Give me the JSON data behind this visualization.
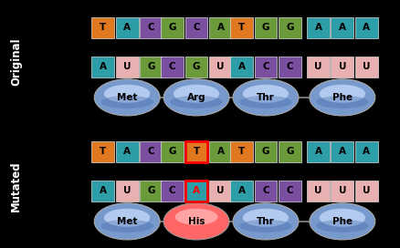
{
  "bg_outer": "#000000",
  "bg_inner": "#ffffff",
  "original": {
    "side_label": "Original",
    "dna_codons": [
      [
        {
          "letter": "T",
          "color": "#e07820"
        },
        {
          "letter": "A",
          "color": "#2d9da8"
        },
        {
          "letter": "C",
          "color": "#7b4fa0"
        }
      ],
      [
        {
          "letter": "G",
          "color": "#6a9a3a"
        },
        {
          "letter": "C",
          "color": "#7b4fa0"
        },
        {
          "letter": "A",
          "color": "#6a9a3a"
        }
      ],
      [
        {
          "letter": "T",
          "color": "#e07820"
        },
        {
          "letter": "G",
          "color": "#6a9a3a"
        },
        {
          "letter": "G",
          "color": "#6a9a3a"
        }
      ],
      [
        {
          "letter": "A",
          "color": "#2d9da8"
        },
        {
          "letter": "A",
          "color": "#2d9da8"
        },
        {
          "letter": "A",
          "color": "#2d9da8"
        }
      ]
    ],
    "mrna_codons": [
      [
        {
          "letter": "A",
          "color": "#2d9da8"
        },
        {
          "letter": "U",
          "color": "#e8b0b0"
        },
        {
          "letter": "G",
          "color": "#6a9a3a"
        }
      ],
      [
        {
          "letter": "C",
          "color": "#7b4fa0"
        },
        {
          "letter": "G",
          "color": "#6a9a3a"
        },
        {
          "letter": "U",
          "color": "#e8b0b0"
        }
      ],
      [
        {
          "letter": "A",
          "color": "#2d9da8"
        },
        {
          "letter": "C",
          "color": "#7b4fa0"
        },
        {
          "letter": "C",
          "color": "#7b4fa0"
        }
      ],
      [
        {
          "letter": "U",
          "color": "#e8b0b0"
        },
        {
          "letter": "U",
          "color": "#e8b0b0"
        },
        {
          "letter": "U",
          "color": "#e8b0b0"
        }
      ]
    ],
    "amino_acids": [
      "Met",
      "Arg",
      "Thr",
      "Phe"
    ],
    "amino_colors": [
      "#a8c0e0",
      "#a8c0e0",
      "#a8c0e0",
      "#a8c0e0"
    ],
    "his": false
  },
  "mutated": {
    "side_label": "Mutated",
    "dna_codons": [
      [
        {
          "letter": "T",
          "color": "#e07820"
        },
        {
          "letter": "A",
          "color": "#2d9da8"
        },
        {
          "letter": "C",
          "color": "#7b4fa0"
        }
      ],
      [
        {
          "letter": "G",
          "color": "#6a9a3a"
        },
        {
          "letter": "T",
          "color": "#e07820",
          "highlight": true
        },
        {
          "letter": "A",
          "color": "#6a9a3a"
        }
      ],
      [
        {
          "letter": "T",
          "color": "#e07820"
        },
        {
          "letter": "G",
          "color": "#6a9a3a"
        },
        {
          "letter": "G",
          "color": "#6a9a3a"
        }
      ],
      [
        {
          "letter": "A",
          "color": "#2d9da8"
        },
        {
          "letter": "A",
          "color": "#2d9da8"
        },
        {
          "letter": "A",
          "color": "#2d9da8"
        }
      ]
    ],
    "mrna_codons": [
      [
        {
          "letter": "A",
          "color": "#2d9da8"
        },
        {
          "letter": "U",
          "color": "#e8b0b0"
        },
        {
          "letter": "G",
          "color": "#6a9a3a"
        }
      ],
      [
        {
          "letter": "C",
          "color": "#7b4fa0"
        },
        {
          "letter": "A",
          "color": "#2d9da8",
          "highlight": true
        },
        {
          "letter": "U",
          "color": "#e8b0b0"
        }
      ],
      [
        {
          "letter": "A",
          "color": "#2d9da8"
        },
        {
          "letter": "C",
          "color": "#7b4fa0"
        },
        {
          "letter": "C",
          "color": "#7b4fa0"
        }
      ],
      [
        {
          "letter": "U",
          "color": "#e8b0b0"
        },
        {
          "letter": "U",
          "color": "#e8b0b0"
        },
        {
          "letter": "U",
          "color": "#e8b0b0"
        }
      ]
    ],
    "amino_acids": [
      "Met",
      "His",
      "Thr",
      "Phe"
    ],
    "amino_colors": [
      "#a8c0e0",
      "#ff6666",
      "#a8c0e0",
      "#a8c0e0"
    ],
    "his": true
  }
}
